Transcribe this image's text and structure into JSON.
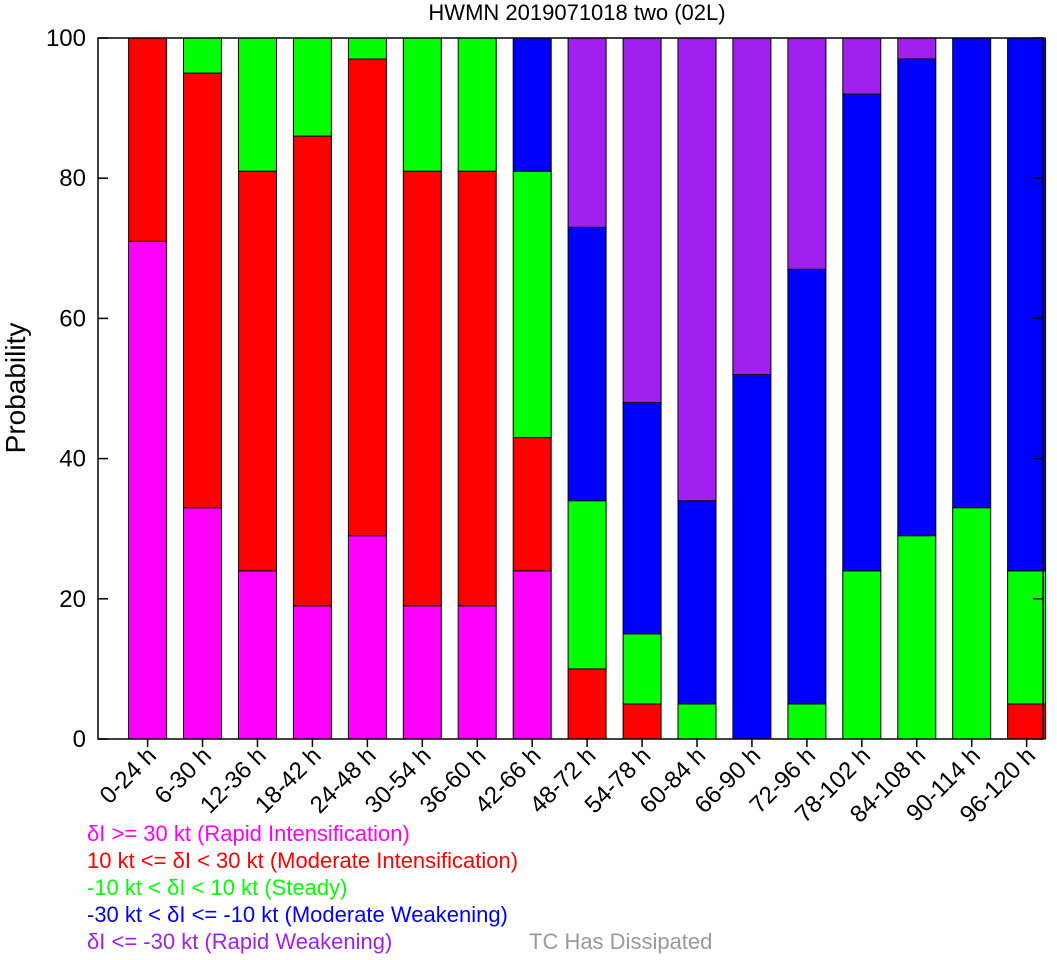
{
  "chart_data": {
    "type": "bar",
    "stacked": true,
    "title": "HWMN 2019071018 two (02L)",
    "ylabel": "Probability",
    "xlabel": "",
    "ylim": [
      0,
      100
    ],
    "yticks": [
      0,
      20,
      40,
      60,
      80,
      100
    ],
    "categories": [
      "0-24 h",
      "6-30 h",
      "12-36 h",
      "18-42 h",
      "24-48 h",
      "30-54 h",
      "36-60 h",
      "42-66 h",
      "48-72 h",
      "54-78 h",
      "60-84 h",
      "66-90 h",
      "72-96 h",
      "78-102 h",
      "84-108 h",
      "90-114 h",
      "96-120 h"
    ],
    "series": [
      {
        "name": "δI >= 30 kt (Rapid Intensification)",
        "color": "#ff00ff",
        "values": [
          71,
          33,
          24,
          19,
          29,
          19,
          19,
          24,
          0,
          0,
          0,
          0,
          0,
          0,
          0,
          0,
          0
        ]
      },
      {
        "name": "10 kt <= δI < 30 kt (Moderate Intensification)",
        "color": "#ff0000",
        "values": [
          29,
          62,
          57,
          67,
          68,
          62,
          62,
          19,
          10,
          5,
          0,
          0,
          0,
          0,
          0,
          0,
          5
        ]
      },
      {
        "name": "-10 kt < δI < 10 kt (Steady)",
        "color": "#00ff00",
        "values": [
          0,
          5,
          19,
          14,
          3,
          19,
          19,
          38,
          24,
          10,
          5,
          0,
          5,
          24,
          29,
          33,
          19
        ]
      },
      {
        "name": "-30 kt < δI <= -10 kt (Moderate Weakening)",
        "color": "#0000ff",
        "values": [
          0,
          0,
          0,
          0,
          0,
          0,
          0,
          19,
          39,
          33,
          29,
          52,
          62,
          68,
          68,
          67,
          76
        ]
      },
      {
        "name": "δI <= -30 kt (Rapid Weakening)",
        "color": "#a020f0",
        "values": [
          0,
          0,
          0,
          0,
          0,
          0,
          0,
          0,
          27,
          52,
          66,
          48,
          33,
          8,
          3,
          0,
          0
        ]
      }
    ],
    "legend": {
      "placement": "bottom-left",
      "entries": [
        {
          "text": "δI >= 30 kt (Rapid Intensification)",
          "color": "#ff00ff"
        },
        {
          "text": "10 kt <= δI < 30 kt (Moderate Intensification)",
          "color": "#ff0000"
        },
        {
          "text": "-10 kt < δI < 10 kt (Steady)",
          "color": "#00ff00"
        },
        {
          "text": "-30 kt < δI <= -10 kt (Moderate Weakening)",
          "color": "#0000ff"
        },
        {
          "text": "δI <= -30 kt (Rapid Weakening)",
          "color": "#a020f0"
        }
      ],
      "dissipated": {
        "text": "TC Has Dissipated",
        "color": "#999999"
      }
    },
    "grid": false
  }
}
